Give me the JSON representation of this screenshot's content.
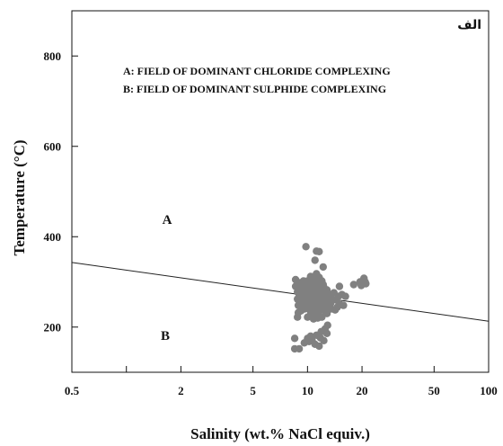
{
  "chart_data": {
    "type": "scatter",
    "corner_label": "الف",
    "xlabel": "Salinity (wt.% NaCl equiv.)",
    "ylabel": "Temperature (°C)",
    "x_scale": "log",
    "xlim": [
      0.5,
      100
    ],
    "ylim": [
      100,
      900
    ],
    "x_ticks": [
      {
        "value": 0.5,
        "label": "0.5"
      },
      {
        "value": 1,
        "label": ""
      },
      {
        "value": 2,
        "label": "2"
      },
      {
        "value": 5,
        "label": "5"
      },
      {
        "value": 10,
        "label": "10"
      },
      {
        "value": 20,
        "label": "20"
      },
      {
        "value": 50,
        "label": "50"
      },
      {
        "value": 100,
        "label": "100"
      }
    ],
    "y_ticks": [
      {
        "value": 200,
        "label": "200"
      },
      {
        "value": 400,
        "label": "400"
      },
      {
        "value": 600,
        "label": "600"
      },
      {
        "value": 800,
        "label": "800"
      }
    ],
    "annotations": [
      "A: FIELD OF DOMINANT CHLORIDE COMPLEXING",
      "B: FIELD OF DOMINANT SULPHIDE COMPLEXING"
    ],
    "regions": [
      {
        "label": "A",
        "x": 1.7,
        "y": 385
      },
      {
        "label": "B",
        "x": 1.7,
        "y": 190
      }
    ],
    "boundary_line": {
      "x": [
        0.5,
        100
      ],
      "y": [
        343,
        213
      ]
    },
    "point_color": "#808080",
    "points": [
      [
        9.8,
        378
      ],
      [
        11.2,
        368
      ],
      [
        11.6,
        367
      ],
      [
        11.0,
        348
      ],
      [
        12.2,
        333
      ],
      [
        8.6,
        305
      ],
      [
        8.6,
        290
      ],
      [
        8.8,
        278
      ],
      [
        8.8,
        262
      ],
      [
        8.9,
        248
      ],
      [
        8.9,
        232
      ],
      [
        8.8,
        222
      ],
      [
        9.1,
        298
      ],
      [
        9.2,
        285
      ],
      [
        9.3,
        272
      ],
      [
        9.4,
        260
      ],
      [
        9.5,
        250
      ],
      [
        9.6,
        240
      ],
      [
        9.7,
        270
      ],
      [
        9.9,
        282
      ],
      [
        10.0,
        292
      ],
      [
        10.1,
        262
      ],
      [
        10.2,
        250
      ],
      [
        10.3,
        238
      ],
      [
        10.4,
        228
      ],
      [
        10.5,
        270
      ],
      [
        10.6,
        284
      ],
      [
        10.7,
        296
      ],
      [
        10.8,
        258
      ],
      [
        10.9,
        246
      ],
      [
        11.0,
        276
      ],
      [
        11.1,
        262
      ],
      [
        11.2,
        290
      ],
      [
        11.3,
        252
      ],
      [
        11.4,
        240
      ],
      [
        11.5,
        232
      ],
      [
        11.6,
        268
      ],
      [
        11.7,
        280
      ],
      [
        11.8,
        300
      ],
      [
        11.9,
        256
      ],
      [
        12.0,
        244
      ],
      [
        12.1,
        274
      ],
      [
        12.2,
        262
      ],
      [
        12.3,
        288
      ],
      [
        12.4,
        250
      ],
      [
        12.5,
        236
      ],
      [
        12.6,
        270
      ],
      [
        12.8,
        282
      ],
      [
        13.0,
        258
      ],
      [
        13.2,
        246
      ],
      [
        13.4,
        272
      ],
      [
        13.6,
        262
      ],
      [
        14.0,
        276
      ],
      [
        14.4,
        260
      ],
      [
        14.8,
        268
      ],
      [
        15.5,
        272
      ],
      [
        16.2,
        268
      ],
      [
        9.0,
        268
      ],
      [
        9.3,
        246
      ],
      [
        9.6,
        292
      ],
      [
        10.0,
        302
      ],
      [
        10.4,
        312
      ],
      [
        10.8,
        306
      ],
      [
        11.2,
        318
      ],
      [
        11.6,
        310
      ],
      [
        12.0,
        302
      ],
      [
        10.2,
        274
      ],
      [
        10.6,
        262
      ],
      [
        11.0,
        252
      ],
      [
        11.4,
        266
      ],
      [
        11.8,
        284
      ],
      [
        12.2,
        294
      ],
      [
        12.6,
        256
      ],
      [
        13.0,
        274
      ],
      [
        13.4,
        252
      ],
      [
        9.8,
        256
      ],
      [
        10.5,
        292
      ],
      [
        11.5,
        296
      ],
      [
        10.0,
        222
      ],
      [
        10.8,
        218
      ],
      [
        11.4,
        220
      ],
      [
        12.0,
        222
      ],
      [
        12.8,
        230
      ],
      [
        13.5,
        240
      ],
      [
        9.5,
        302
      ],
      [
        10.3,
        282
      ],
      [
        11.7,
        242
      ],
      [
        10.9,
        232
      ],
      [
        12.4,
        276
      ],
      [
        9.2,
        236
      ],
      [
        19.5,
        300
      ],
      [
        20.5,
        308
      ],
      [
        21.0,
        296
      ],
      [
        19.8,
        292
      ],
      [
        18.0,
        294
      ],
      [
        20.8,
        300
      ],
      [
        15.0,
        252
      ],
      [
        15.8,
        248
      ],
      [
        15.0,
        290
      ],
      [
        14.2,
        238
      ],
      [
        14.6,
        244
      ],
      [
        8.5,
        175
      ],
      [
        8.5,
        152
      ],
      [
        9.0,
        152
      ],
      [
        10.0,
        175
      ],
      [
        10.4,
        180
      ],
      [
        11.2,
        182
      ],
      [
        11.8,
        176
      ],
      [
        12.5,
        196
      ],
      [
        12.8,
        186
      ],
      [
        9.6,
        165
      ],
      [
        10.2,
        168
      ],
      [
        11.0,
        162
      ],
      [
        11.6,
        158
      ],
      [
        12.3,
        170
      ],
      [
        10.6,
        170
      ],
      [
        11.9,
        190
      ],
      [
        12.9,
        204
      ]
    ]
  }
}
